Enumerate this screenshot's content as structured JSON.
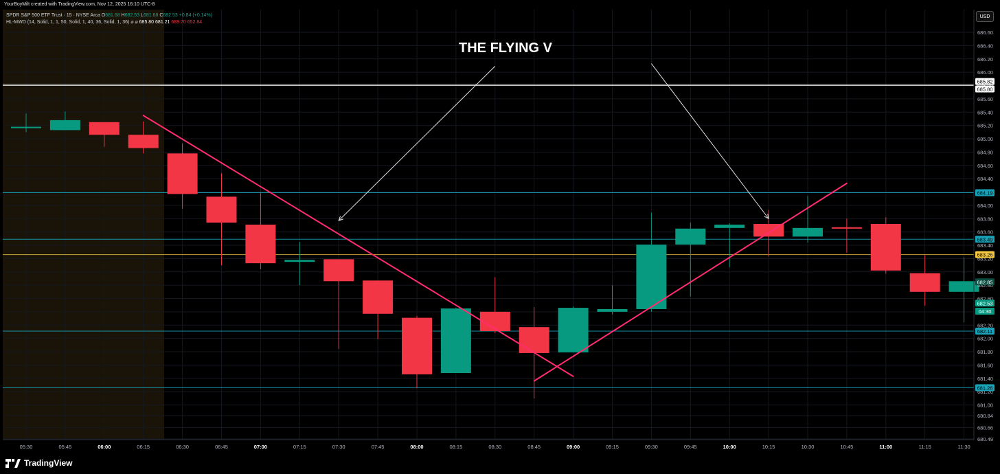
{
  "caption": "YourBoyMilt created with TradingView.com, Nov 12, 2025 16:10 UTC-8",
  "legend": {
    "symbol": "SPDR S&P 500 ETF Trust · 15 · NYSE Arca",
    "o_label": "O",
    "o_value": "681.68",
    "h_label": "H",
    "h_value": "682.53",
    "l_label": "L",
    "l_value": "681.68",
    "c_label": "C",
    "c_value": "682.53",
    "change": "+0.84 (+0.14%)",
    "indicator": "HL-MWD (14, Solid, 1, 1, 50, Solid, 1, 40, 36, Solid, 1, 36)",
    "ind_icons": "⌀ ⌀",
    "ind_v1": "685.80",
    "ind_v2": "681.21",
    "ind_v3": "689.70",
    "ind_v4": "652.84"
  },
  "currency_button": "USD",
  "annotation": "THE FLYING V",
  "brand": "TradingView",
  "colors": {
    "up": "#089981",
    "down": "#f23645",
    "trendline": "#ff2d6f",
    "level": "#17a2b8",
    "yellow": "#f5c842",
    "white_level": "#d9d9d9"
  },
  "chart_data": {
    "type": "candlestick",
    "title": "SPDR S&P 500 ETF Trust · 15 · NYSE Arca",
    "ylim": [
      680.4,
      686.9
    ],
    "y_ticks": [
      "686.60",
      "686.40",
      "686.20",
      "686.00",
      "685.80",
      "685.60",
      "685.40",
      "685.20",
      "685.00",
      "684.80",
      "684.60",
      "684.40",
      "684.20",
      "684.00",
      "683.80",
      "683.60",
      "683.40",
      "683.20",
      "683.00",
      "682.80",
      "682.60",
      "682.40",
      "682.20",
      "682.00",
      "681.80",
      "681.60",
      "681.40",
      "681.20",
      "681.00",
      "680.84",
      "680.66",
      "680.49"
    ],
    "x_ticks": [
      "05:30",
      "05:45",
      "06:00",
      "06:15",
      "06:30",
      "06:45",
      "07:00",
      "07:15",
      "07:30",
      "07:45",
      "08:00",
      "08:15",
      "08:30",
      "08:45",
      "09:00",
      "09:15",
      "09:30",
      "09:45",
      "10:00",
      "10:15",
      "10:30",
      "10:45",
      "11:00",
      "11:15",
      "11:30"
    ],
    "bold_x_ticks": [
      "06:00",
      "07:00",
      "08:00",
      "09:00",
      "10:00",
      "11:00"
    ],
    "candles": [
      {
        "t": "05:30",
        "o": 685.18,
        "h": 685.38,
        "l": 685.1,
        "c": 685.18
      },
      {
        "t": "05:45",
        "o": 685.13,
        "h": 685.41,
        "l": 685.13,
        "c": 685.28
      },
      {
        "t": "06:00",
        "o": 685.25,
        "h": 685.25,
        "l": 684.88,
        "c": 685.06
      },
      {
        "t": "06:15",
        "o": 685.06,
        "h": 685.26,
        "l": 684.78,
        "c": 684.86
      },
      {
        "t": "06:30",
        "o": 684.78,
        "h": 684.93,
        "l": 683.95,
        "c": 684.17
      },
      {
        "t": "06:45",
        "o": 684.13,
        "h": 684.48,
        "l": 683.1,
        "c": 683.74
      },
      {
        "t": "07:00",
        "o": 683.71,
        "h": 684.2,
        "l": 683.04,
        "c": 683.13
      },
      {
        "t": "07:15",
        "o": 683.15,
        "h": 683.45,
        "l": 682.8,
        "c": 683.18
      },
      {
        "t": "07:30",
        "o": 683.19,
        "h": 683.19,
        "l": 681.84,
        "c": 682.86
      },
      {
        "t": "07:45",
        "o": 682.87,
        "h": 682.87,
        "l": 681.99,
        "c": 682.37
      },
      {
        "t": "08:00",
        "o": 682.31,
        "h": 682.34,
        "l": 681.25,
        "c": 681.46
      },
      {
        "t": "08:15",
        "o": 681.48,
        "h": 682.46,
        "l": 681.48,
        "c": 682.45
      },
      {
        "t": "08:30",
        "o": 682.4,
        "h": 682.92,
        "l": 682.08,
        "c": 682.11
      },
      {
        "t": "08:45",
        "o": 682.17,
        "h": 682.47,
        "l": 681.1,
        "c": 681.78
      },
      {
        "t": "09:00",
        "o": 681.79,
        "h": 682.48,
        "l": 681.79,
        "c": 682.46
      },
      {
        "t": "09:15",
        "o": 682.4,
        "h": 682.8,
        "l": 682.36,
        "c": 682.44
      },
      {
        "t": "09:30",
        "o": 682.44,
        "h": 683.89,
        "l": 682.4,
        "c": 683.41
      },
      {
        "t": "09:45",
        "o": 683.41,
        "h": 683.74,
        "l": 682.63,
        "c": 683.65
      },
      {
        "t": "10:00",
        "o": 683.66,
        "h": 683.73,
        "l": 683.07,
        "c": 683.71
      },
      {
        "t": "10:15",
        "o": 683.72,
        "h": 683.93,
        "l": 683.23,
        "c": 683.53
      },
      {
        "t": "10:30",
        "o": 683.53,
        "h": 684.14,
        "l": 683.44,
        "c": 683.66
      },
      {
        "t": "10:45",
        "o": 683.67,
        "h": 683.8,
        "l": 683.29,
        "c": 683.66
      },
      {
        "t": "11:00",
        "o": 683.72,
        "h": 683.82,
        "l": 682.97,
        "c": 683.02
      },
      {
        "t": "11:15",
        "o": 682.98,
        "h": 683.25,
        "l": 682.49,
        "c": 682.7
      },
      {
        "t": "11:30",
        "o": 682.7,
        "h": 683.22,
        "l": 682.24,
        "c": 682.86
      }
    ],
    "horizontal_levels": [
      {
        "price": 685.82,
        "label": "685.82",
        "style": "white"
      },
      {
        "price": 685.8,
        "label": "685.80",
        "style": "white"
      },
      {
        "price": 684.19,
        "label": "684.19",
        "style": "level"
      },
      {
        "price": 683.49,
        "label": "683.49",
        "style": "level"
      },
      {
        "price": 683.26,
        "label": "683.26",
        "style": "yellow"
      },
      {
        "price": 682.11,
        "label": "682.11",
        "style": "level"
      },
      {
        "price": 681.26,
        "label": "681.26",
        "style": "level"
      }
    ],
    "price_tags": [
      {
        "price": 682.85,
        "label": "682.85",
        "style": "up_dim"
      },
      {
        "price": 682.53,
        "label": "682.53",
        "style": "up"
      },
      {
        "price": 682.45,
        "label": "04:30",
        "style": "up"
      }
    ],
    "trendlines": [
      {
        "from": {
          "t": "06:15",
          "p": 685.35
        },
        "to": {
          "t": "09:00",
          "p": 681.43
        }
      },
      {
        "from": {
          "t": "08:45",
          "p": 681.36
        },
        "to": {
          "t": "10:45",
          "p": 684.33
        }
      }
    ],
    "arrows": [
      {
        "from": {
          "t": "08:30",
          "p": 686.09
        },
        "to": {
          "t": "07:30",
          "p": 683.77
        }
      },
      {
        "from": {
          "t": "09:30",
          "p": 686.13
        },
        "to": {
          "t": "10:15",
          "p": 683.8
        }
      }
    ],
    "session_shade": {
      "from": "05:15",
      "to": "06:23"
    }
  }
}
